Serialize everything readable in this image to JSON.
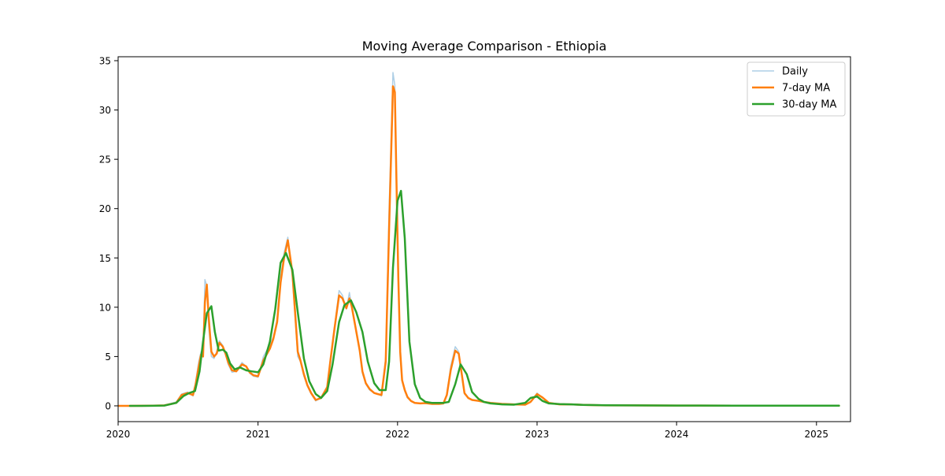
{
  "chart_data": {
    "type": "line",
    "title": "Moving Average Comparison - Ethiopia",
    "xlabel": "",
    "ylabel": "",
    "x_range": [
      "2020-01-01",
      "2025-03-31"
    ],
    "ylim": [
      -1.6,
      35.4
    ],
    "x_ticks": [
      "2020-01-01",
      "2021-01-01",
      "2022-01-01",
      "2023-01-01",
      "2024-01-01",
      "2025-01-01"
    ],
    "x_tick_labels": [
      "2020",
      "2021",
      "2022",
      "2023",
      "2024",
      "2025"
    ],
    "y_ticks": [
      0,
      5,
      10,
      15,
      20,
      25,
      30,
      35
    ],
    "y_tick_labels": [
      "0",
      "5",
      "10",
      "15",
      "20",
      "25",
      "30",
      "35"
    ],
    "grid": false,
    "legend_position": "upper right",
    "series": [
      {
        "name": "Daily",
        "color": "#aecfe6",
        "x": [
          "2020-01-03",
          "2020-02-01",
          "2020-03-01",
          "2020-04-01",
          "2020-05-01",
          "2020-06-01",
          "2020-06-15",
          "2020-07-01",
          "2020-07-08",
          "2020-07-15",
          "2020-07-22",
          "2020-07-30",
          "2020-08-05",
          "2020-08-10",
          "2020-08-15",
          "2020-08-20",
          "2020-08-25",
          "2020-09-01",
          "2020-09-08",
          "2020-09-15",
          "2020-09-22",
          "2020-10-01",
          "2020-10-08",
          "2020-10-15",
          "2020-10-25",
          "2020-11-05",
          "2020-11-20",
          "2020-12-01",
          "2020-12-10",
          "2020-12-20",
          "2021-01-01",
          "2021-01-15",
          "2021-02-01",
          "2021-02-10",
          "2021-02-20",
          "2021-03-01",
          "2021-03-10",
          "2021-03-20",
          "2021-04-01",
          "2021-04-08",
          "2021-04-15",
          "2021-04-22",
          "2021-05-01",
          "2021-05-10",
          "2021-05-20",
          "2021-06-01",
          "2021-06-15",
          "2021-07-01",
          "2021-07-10",
          "2021-07-20",
          "2021-08-01",
          "2021-08-10",
          "2021-08-20",
          "2021-08-28",
          "2021-09-03",
          "2021-09-10",
          "2021-09-17",
          "2021-09-24",
          "2021-10-01",
          "2021-10-10",
          "2021-10-20",
          "2021-11-01",
          "2021-11-10",
          "2021-11-20",
          "2021-12-01",
          "2021-12-10",
          "2021-12-20",
          "2021-12-25",
          "2021-12-29",
          "2022-01-03",
          "2022-01-08",
          "2022-01-13",
          "2022-01-20",
          "2022-01-27",
          "2022-02-05",
          "2022-02-15",
          "2022-03-01",
          "2022-03-15",
          "2022-04-01",
          "2022-04-20",
          "2022-05-01",
          "2022-05-10",
          "2022-05-20",
          "2022-06-01",
          "2022-06-10",
          "2022-06-18",
          "2022-06-25",
          "2022-07-05",
          "2022-07-15",
          "2022-08-01",
          "2022-08-15",
          "2022-09-01",
          "2022-10-01",
          "2022-11-01",
          "2022-12-01",
          "2022-12-15",
          "2023-01-01",
          "2023-01-15",
          "2023-02-01",
          "2023-03-01",
          "2023-04-01",
          "2023-05-01",
          "2023-07-01",
          "2023-09-01",
          "2024-01-01",
          "2024-06-01",
          "2025-01-01",
          "2025-03-01"
        ],
        "values": [
          0,
          0,
          0.01,
          0.02,
          0.05,
          0.4,
          1.2,
          1.4,
          1.2,
          1.0,
          2.5,
          4.5,
          5.5,
          5.0,
          12.8,
          12.2,
          8,
          5,
          4.8,
          5.5,
          6.6,
          6.1,
          5.2,
          4.2,
          3.4,
          3.5,
          4.4,
          4.0,
          3.3,
          3.0,
          2.9,
          5,
          6.2,
          7.0,
          8.8,
          13,
          15.5,
          17.1,
          13,
          9,
          5,
          4.5,
          3,
          2,
          1.2,
          0.5,
          0.8,
          2,
          5,
          8,
          11.7,
          11.2,
          9.8,
          11.5,
          10.0,
          8.5,
          7,
          5.5,
          3.3,
          2.2,
          1.6,
          1.3,
          1.2,
          1.0,
          5,
          20,
          33.8,
          32.5,
          22,
          14,
          5,
          2.5,
          1.5,
          0.8,
          0.5,
          0.3,
          0.25,
          0.3,
          0.2,
          0.2,
          0.25,
          1.2,
          4,
          6.0,
          5.5,
          3,
          1.2,
          0.8,
          0.6,
          0.5,
          0.4,
          0.3,
          0.2,
          0.15,
          0.12,
          0.4,
          1.3,
          0.8,
          0.3,
          0.15,
          0.15,
          0.1,
          0.05,
          0.05,
          0.03,
          0.02,
          0.02,
          0.02
        ]
      },
      {
        "name": "7-day MA",
        "color": "#ff7f0e",
        "x": [
          "2020-01-03",
          "2020-02-01",
          "2020-03-01",
          "2020-04-01",
          "2020-05-01",
          "2020-06-01",
          "2020-06-15",
          "2020-07-01",
          "2020-07-08",
          "2020-07-15",
          "2020-07-22",
          "2020-07-30",
          "2020-08-05",
          "2020-08-10",
          "2020-08-15",
          "2020-08-20",
          "2020-08-25",
          "2020-09-01",
          "2020-09-08",
          "2020-09-15",
          "2020-09-22",
          "2020-10-01",
          "2020-10-08",
          "2020-10-15",
          "2020-10-25",
          "2020-11-05",
          "2020-11-20",
          "2020-12-01",
          "2020-12-10",
          "2020-12-20",
          "2021-01-01",
          "2021-01-15",
          "2021-02-01",
          "2021-02-10",
          "2021-02-20",
          "2021-03-01",
          "2021-03-10",
          "2021-03-20",
          "2021-04-01",
          "2021-04-08",
          "2021-04-15",
          "2021-04-22",
          "2021-05-01",
          "2021-05-10",
          "2021-05-20",
          "2021-06-01",
          "2021-06-15",
          "2021-07-01",
          "2021-07-10",
          "2021-07-20",
          "2021-08-01",
          "2021-08-10",
          "2021-08-20",
          "2021-08-28",
          "2021-09-03",
          "2021-09-10",
          "2021-09-17",
          "2021-09-24",
          "2021-10-01",
          "2021-10-10",
          "2021-10-20",
          "2021-11-01",
          "2021-11-10",
          "2021-11-20",
          "2021-12-01",
          "2021-12-10",
          "2021-12-20",
          "2021-12-25",
          "2021-12-29",
          "2022-01-03",
          "2022-01-08",
          "2022-01-13",
          "2022-01-20",
          "2022-01-27",
          "2022-02-05",
          "2022-02-15",
          "2022-03-01",
          "2022-03-15",
          "2022-04-01",
          "2022-04-20",
          "2022-05-01",
          "2022-05-10",
          "2022-05-20",
          "2022-06-01",
          "2022-06-10",
          "2022-06-18",
          "2022-06-25",
          "2022-07-05",
          "2022-07-15",
          "2022-08-01",
          "2022-08-15",
          "2022-09-01",
          "2022-10-01",
          "2022-11-01",
          "2022-12-01",
          "2022-12-15",
          "2023-01-01",
          "2023-01-15",
          "2023-02-01",
          "2023-03-01",
          "2023-04-01",
          "2023-05-01",
          "2023-07-01",
          "2023-09-01",
          "2024-01-01",
          "2024-06-01",
          "2025-01-01",
          "2025-03-01"
        ],
        "values": [
          0,
          0,
          0.01,
          0.02,
          0.05,
          0.3,
          1.1,
          1.3,
          1.2,
          1.1,
          2.2,
          4.0,
          5.2,
          5.0,
          10.5,
          12.3,
          9,
          5.5,
          5.0,
          5.3,
          6.4,
          6.0,
          5.3,
          4.4,
          3.6,
          3.5,
          4.2,
          4.0,
          3.4,
          3.1,
          3.0,
          4.6,
          5.8,
          6.8,
          8.5,
          12.5,
          15.0,
          16.8,
          13.5,
          9.5,
          5.5,
          4.6,
          3.2,
          2.1,
          1.3,
          0.6,
          0.8,
          1.9,
          4.8,
          7.8,
          11.2,
          10.9,
          9.9,
          10.9,
          10.1,
          8.6,
          7.1,
          5.6,
          3.5,
          2.3,
          1.7,
          1.3,
          1.2,
          1.1,
          4.5,
          18,
          32.4,
          31.8,
          23,
          13,
          5.5,
          2.6,
          1.6,
          0.9,
          0.5,
          0.3,
          0.25,
          0.28,
          0.2,
          0.2,
          0.25,
          1.1,
          3.6,
          5.6,
          5.3,
          3.2,
          1.3,
          0.8,
          0.6,
          0.5,
          0.4,
          0.3,
          0.2,
          0.15,
          0.12,
          0.4,
          1.2,
          0.85,
          0.3,
          0.15,
          0.15,
          0.1,
          0.05,
          0.05,
          0.03,
          0.02,
          0.02,
          0.02
        ]
      },
      {
        "name": "30-day MA",
        "color": "#2ca02c",
        "x": [
          "2020-02-01",
          "2020-03-01",
          "2020-04-01",
          "2020-05-01",
          "2020-06-01",
          "2020-06-20",
          "2020-07-05",
          "2020-07-20",
          "2020-08-01",
          "2020-08-10",
          "2020-08-20",
          "2020-09-01",
          "2020-09-10",
          "2020-09-20",
          "2020-10-01",
          "2020-10-10",
          "2020-10-20",
          "2020-11-01",
          "2020-11-15",
          "2020-12-01",
          "2020-12-15",
          "2021-01-01",
          "2021-01-15",
          "2021-02-01",
          "2021-02-15",
          "2021-03-01",
          "2021-03-15",
          "2021-04-01",
          "2021-04-15",
          "2021-05-01",
          "2021-05-15",
          "2021-06-01",
          "2021-06-15",
          "2021-07-01",
          "2021-07-15",
          "2021-08-01",
          "2021-08-15",
          "2021-09-01",
          "2021-09-15",
          "2021-10-01",
          "2021-10-15",
          "2021-11-01",
          "2021-11-15",
          "2021-12-01",
          "2021-12-10",
          "2021-12-20",
          "2022-01-01",
          "2022-01-10",
          "2022-01-20",
          "2022-02-01",
          "2022-02-15",
          "2022-03-01",
          "2022-03-15",
          "2022-04-01",
          "2022-04-15",
          "2022-05-01",
          "2022-05-15",
          "2022-06-01",
          "2022-06-15",
          "2022-07-01",
          "2022-07-15",
          "2022-08-01",
          "2022-08-15",
          "2022-09-01",
          "2022-10-01",
          "2022-11-01",
          "2022-12-01",
          "2022-12-15",
          "2023-01-01",
          "2023-01-15",
          "2023-02-01",
          "2023-03-01",
          "2023-04-01",
          "2023-05-01",
          "2023-07-01",
          "2023-09-01",
          "2024-01-01",
          "2024-06-01",
          "2025-01-01",
          "2025-03-01"
        ],
        "values": [
          0,
          0,
          0.01,
          0.03,
          0.3,
          1.0,
          1.3,
          1.5,
          3.5,
          6.5,
          9.4,
          10.1,
          7.5,
          5.6,
          5.7,
          5.4,
          4.3,
          3.7,
          3.9,
          3.6,
          3.5,
          3.4,
          4.2,
          6.5,
          9.8,
          14.5,
          15.5,
          13.8,
          9.5,
          4.8,
          2.5,
          1.2,
          0.8,
          1.5,
          4.2,
          8.5,
          10.2,
          10.7,
          9.5,
          7.5,
          4.5,
          2.3,
          1.6,
          1.6,
          4.5,
          14,
          20.8,
          21.8,
          17,
          6.5,
          2.2,
          0.8,
          0.4,
          0.3,
          0.3,
          0.3,
          0.4,
          2.2,
          4.2,
          3.2,
          1.4,
          0.7,
          0.4,
          0.25,
          0.15,
          0.12,
          0.3,
          0.8,
          0.95,
          0.5,
          0.25,
          0.18,
          0.15,
          0.1,
          0.06,
          0.05,
          0.03,
          0.02,
          0.02,
          0.02
        ]
      }
    ]
  }
}
